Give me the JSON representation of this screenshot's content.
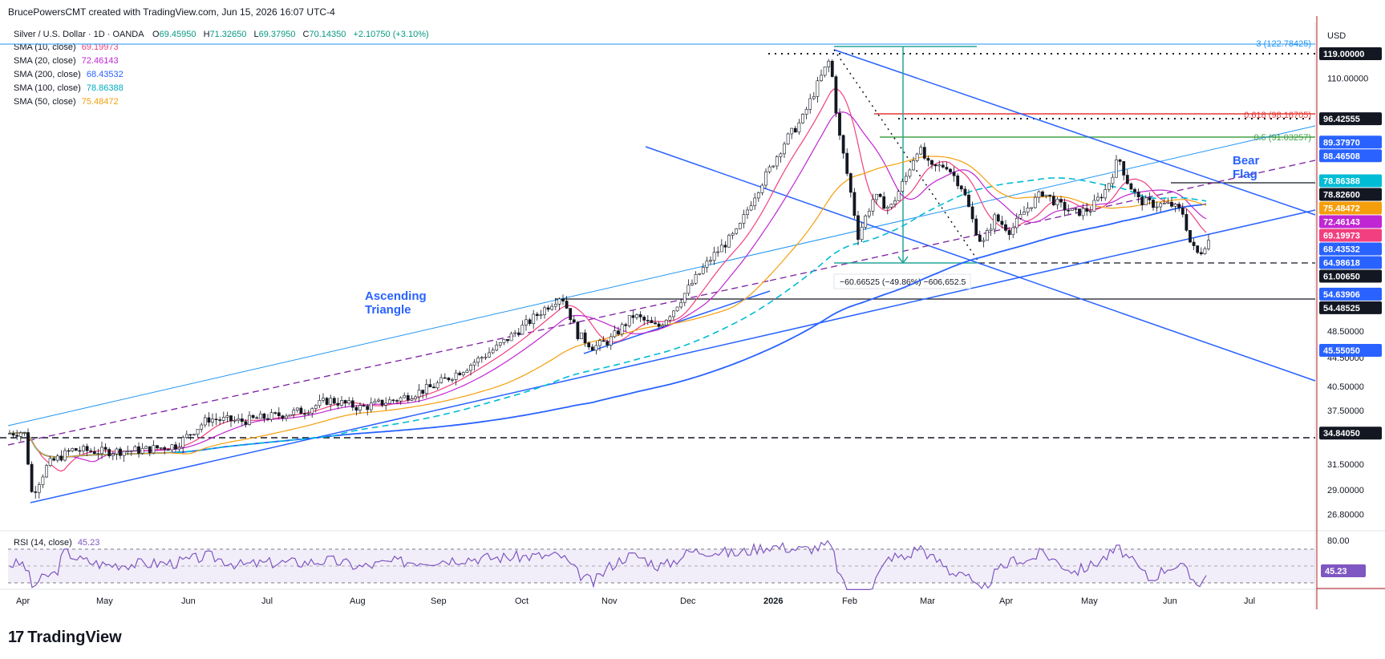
{
  "header": "BrucePowersCMT created with TradingView.com, Jun 15, 2026 16:07 UTC-4",
  "brand": {
    "logo_glyph": "17",
    "name": "TradingView"
  },
  "chart_data": {
    "type": "candlestick",
    "symbol": "Silver / U.S. Dollar · 1D · OANDA",
    "ohlc": {
      "o_label": "O",
      "o": "69.45950",
      "h_label": "H",
      "h": "71.32650",
      "l_label": "L",
      "l": "69.37950",
      "c_label": "C",
      "c": "70.14350",
      "change": "+2.10750 (+3.10%)"
    },
    "currency": "USD",
    "y_scale": "log",
    "ylim": [
      25,
      135
    ],
    "x_axis": [
      "Apr",
      "May",
      "Jun",
      "Jul",
      "Aug",
      "Sep",
      "Oct",
      "Nov",
      "Dec",
      "2026",
      "Feb",
      "Mar",
      "Apr",
      "May",
      "Jun",
      "Jul"
    ],
    "y_ticks": [
      "110.00000",
      "48.50000",
      "44.50000",
      "40.50000",
      "37.50000",
      "31.50000",
      "29.00000",
      "26.80000"
    ],
    "indicators": [
      {
        "label": "SMA (10, close)",
        "value": "69.19973",
        "color": "#f23f7f"
      },
      {
        "label": "SMA (20, close)",
        "value": "72.46143",
        "color": "#c026d3"
      },
      {
        "label": "SMA (200, close)",
        "value": "68.43532",
        "color": "#2962ff"
      },
      {
        "label": "SMA (100, close)",
        "value": "78.86388",
        "color": "#00bcd4"
      },
      {
        "label": "SMA (50, close)",
        "value": "75.48472",
        "color": "#f59e0b"
      }
    ],
    "price_labels": [
      {
        "value": "119.00000",
        "bg": "#131722"
      },
      {
        "value": "96.42555",
        "bg": "#131722"
      },
      {
        "value": "89.37970",
        "bg": "#2962ff"
      },
      {
        "value": "88.46508",
        "bg": "#2962ff"
      },
      {
        "value": "78.86388",
        "bg": "#00bcd4"
      },
      {
        "value": "78.82600",
        "bg": "#131722"
      },
      {
        "value": "75.48472",
        "bg": "#f59e0b"
      },
      {
        "value": "72.46143",
        "bg": "#c026d3"
      },
      {
        "value": "69.19973",
        "bg": "#f23f7f"
      },
      {
        "value": "68.43532",
        "bg": "#2962ff"
      },
      {
        "value": "64.98618",
        "bg": "#2962ff"
      },
      {
        "value": "61.00650",
        "bg": "#131722"
      },
      {
        "value": "54.63906",
        "bg": "#2962ff"
      },
      {
        "value": "54.48525",
        "bg": "#131722"
      },
      {
        "value": "45.55050",
        "bg": "#2962ff"
      },
      {
        "value": "34.84050",
        "bg": "#131722"
      }
    ],
    "fib_labels": [
      {
        "text": "3 (122.78425)",
        "color": "#2196f3"
      },
      {
        "text": "0.618 (98.16705)",
        "color": "#e53935"
      },
      {
        "text": "0.5 (91.03257)",
        "color": "#43a047"
      }
    ],
    "annotations": [
      {
        "text": "Ascending",
        "color": "#2962ff"
      },
      {
        "text": "Triangle",
        "color": "#2962ff"
      },
      {
        "text": "Bear",
        "color": "#2962ff"
      },
      {
        "text": "Flag",
        "color": "#2962ff"
      },
      {
        "text": "−60.66525 (−49.86%) −606,652.5",
        "color": "#131722"
      }
    ],
    "rsi": {
      "label": "RSI (14, close)",
      "value": "45.23",
      "upper": "80.00",
      "color": "#7e57c2"
    },
    "series_color_up": "#26a69a",
    "series_color_down": "#ef5350"
  }
}
